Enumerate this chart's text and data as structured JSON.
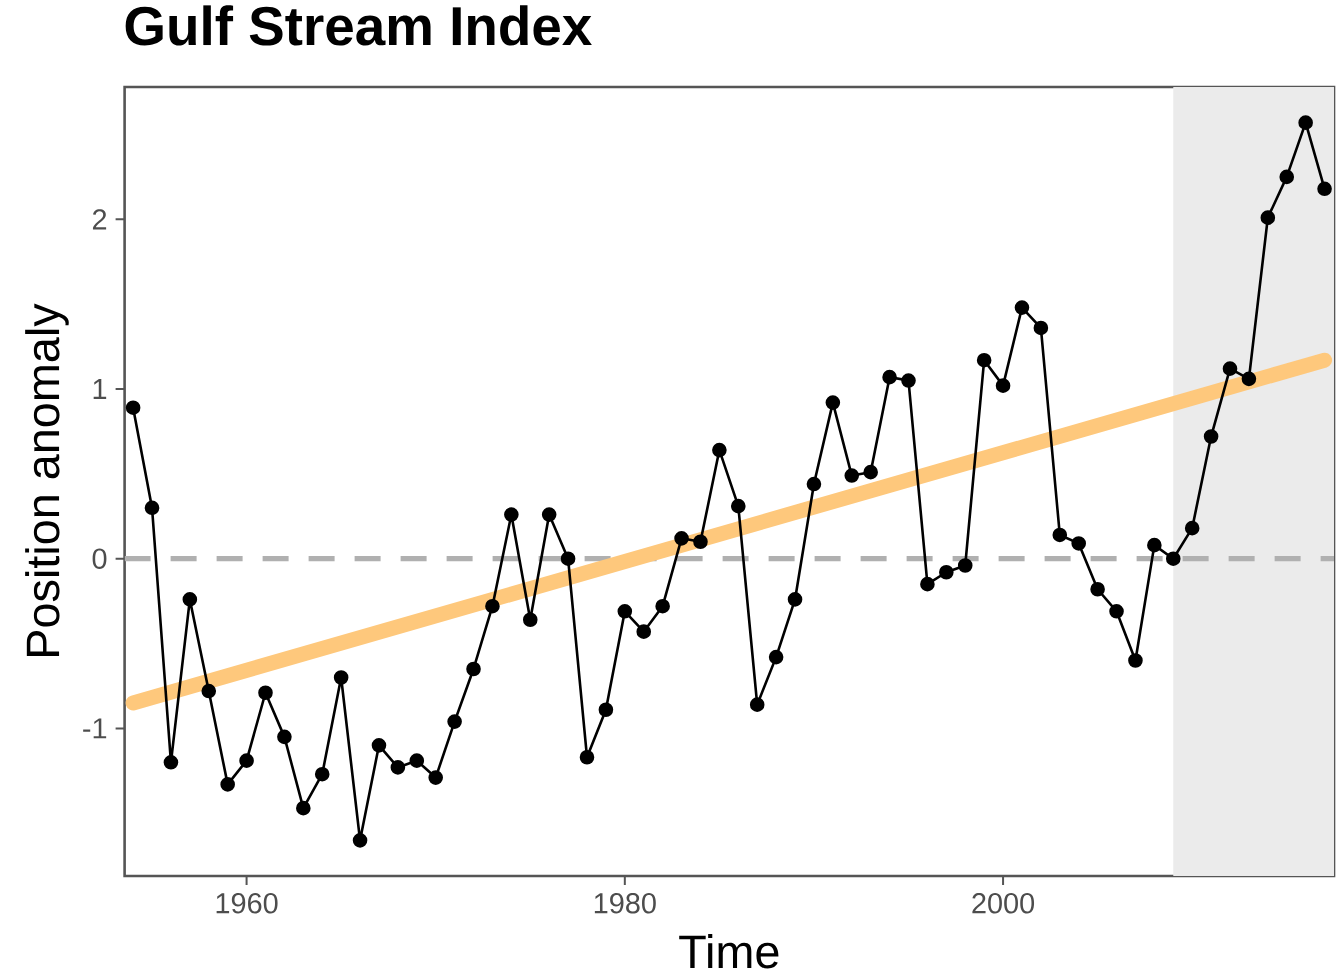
{
  "chart_data": {
    "type": "line",
    "title": "Gulf Stream Index",
    "xlabel": "Time",
    "ylabel": "Position anomaly",
    "x": [
      1954,
      1955,
      1956,
      1957,
      1958,
      1959,
      1960,
      1961,
      1962,
      1963,
      1964,
      1965,
      1966,
      1967,
      1968,
      1969,
      1970,
      1971,
      1972,
      1973,
      1974,
      1975,
      1976,
      1977,
      1978,
      1979,
      1980,
      1981,
      1982,
      1983,
      1984,
      1985,
      1986,
      1987,
      1988,
      1989,
      1990,
      1991,
      1992,
      1993,
      1994,
      1995,
      1996,
      1997,
      1998,
      1999,
      2000,
      2001,
      2002,
      2003,
      2004,
      2005,
      2006,
      2007,
      2008,
      2009,
      2010,
      2011,
      2012,
      2013,
      2014,
      2015,
      2016,
      2017
    ],
    "series": [
      {
        "type": "line",
        "color": "#fec87c",
        "marker": "none",
        "x": [
          1954,
          2017
        ],
        "values": [
          -0.85,
          1.17
        ]
      },
      {
        "color": "#000000",
        "values": [
          0.89,
          0.3,
          -1.2,
          -0.24,
          -0.78,
          -1.33,
          -1.19,
          -0.79,
          -1.05,
          -1.47,
          -1.27,
          -0.7,
          -1.66,
          -1.1,
          -1.23,
          -1.19,
          -1.29,
          -0.96,
          -0.65,
          -0.28,
          0.26,
          -0.36,
          0.26,
          0.0,
          -1.17,
          -0.89,
          -0.31,
          -0.43,
          -0.28,
          0.12,
          0.1,
          0.64,
          0.31,
          -0.86,
          -0.58,
          -0.24,
          0.44,
          0.92,
          0.49,
          0.51,
          1.07,
          1.05,
          -0.15,
          -0.08,
          -0.04,
          1.17,
          1.02,
          1.48,
          1.36,
          0.14,
          0.09,
          -0.18,
          -0.31,
          -0.6,
          0.08,
          0.0,
          0.18,
          0.72,
          1.12,
          1.06,
          2.01,
          2.25,
          2.57,
          2.18
        ]
      }
    ],
    "marker": "circle",
    "line_style": "solid",
    "xlim": [
      1953.55,
      2017.5
    ],
    "ylim": [
      -1.87,
      2.78
    ],
    "xticks": [
      1960,
      1980,
      2000
    ],
    "yticks": [
      -1,
      0,
      1,
      2
    ],
    "ref_lines": [
      {
        "axis": "y",
        "value": 0,
        "color": "#b0b0b0",
        "line_style": "dashed"
      }
    ],
    "bands": [
      {
        "axis": "x",
        "from": 2009,
        "to": 2017.5,
        "color": "#ebebeb"
      }
    ]
  }
}
